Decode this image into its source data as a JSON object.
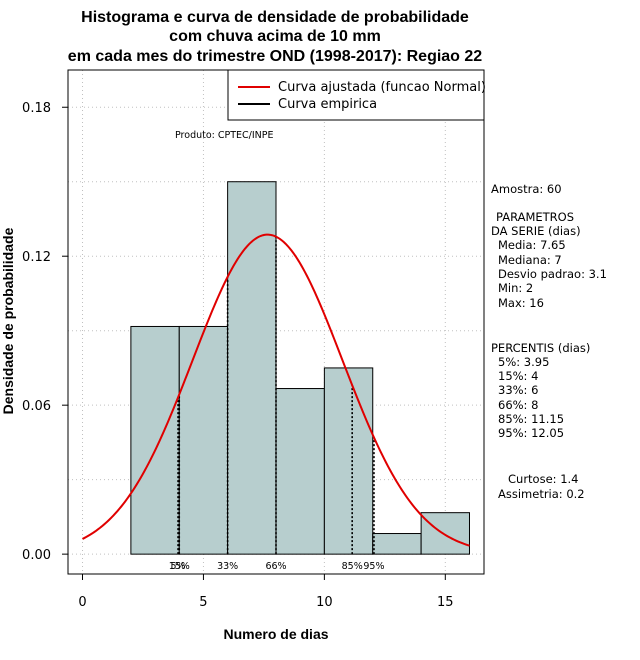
{
  "chart_data": {
    "type": "bar",
    "title_lines": [
      "Histograma e curva de densidade de probabilidade",
      "com chuva acima de 10 mm",
      "em cada mes do trimestre OND (1998-2017): Regiao 22"
    ],
    "xlabel": "Numero de dias",
    "ylabel": "Densidade de probabilidade",
    "xlim": [
      -0.6,
      16.6
    ],
    "ylim": [
      -0.008,
      0.195
    ],
    "x_ticks": [
      0,
      5,
      10,
      15
    ],
    "x_tick_labels": [
      "0",
      "5",
      "10",
      "15"
    ],
    "y_ticks": [
      0.0,
      0.06,
      0.12,
      0.18
    ],
    "y_tick_labels": [
      "0.00",
      "0.06",
      "0.12",
      "0.18"
    ],
    "bins": [
      {
        "start": 2,
        "end": 4,
        "density": 0.0917
      },
      {
        "start": 4,
        "end": 6,
        "density": 0.0917
      },
      {
        "start": 6,
        "end": 8,
        "density": 0.15
      },
      {
        "start": 8,
        "end": 10,
        "density": 0.0667
      },
      {
        "start": 10,
        "end": 12,
        "density": 0.075
      },
      {
        "start": 12,
        "end": 14,
        "density": 0.0083
      },
      {
        "start": 14,
        "end": 16,
        "density": 0.0167
      }
    ],
    "normal_fit": {
      "mean": 7.65,
      "sd": 3.1,
      "x_from": 0,
      "x_to": 16
    },
    "percentile_lines": [
      {
        "x": 3.95,
        "label": "5%"
      },
      {
        "x": 4,
        "label": "15%"
      },
      {
        "x": 6,
        "label": "33%"
      },
      {
        "x": 8,
        "label": "66%"
      },
      {
        "x": 11.15,
        "label": "85%"
      },
      {
        "x": 12.05,
        "label": "95%"
      }
    ],
    "legend": [
      {
        "label": "Curva ajustada (funcao Normal)",
        "color": "#e00000"
      },
      {
        "label": "Curva empirica",
        "color": "#000000"
      }
    ],
    "legend_position": "top-right",
    "annotation": "Produto: CPTEC/INPE",
    "grid": true
  },
  "colors": {
    "bar_fill": "#b7cece",
    "bar_stroke": "#000000",
    "fit_curve": "#e00000",
    "grid": "#c0c0c0"
  },
  "side_panel": {
    "amostra": "Amostra: 60",
    "parametros_lines": [
      "PARAMETROS",
      "DA SERIE (dias)",
      "Media: 7.65",
      "Mediana: 7",
      "Desvio padrao: 3.1",
      "Min: 2",
      "Max: 16"
    ],
    "percentis_lines": [
      "PERCENTIS (dias)",
      "5%: 3.95",
      "15%: 4",
      "33%: 6",
      "66%: 8",
      "85%: 11.15",
      "95%: 12.05"
    ],
    "shape_lines": [
      "Curtose: 1.4",
      "Assimetria: 0.2"
    ]
  }
}
